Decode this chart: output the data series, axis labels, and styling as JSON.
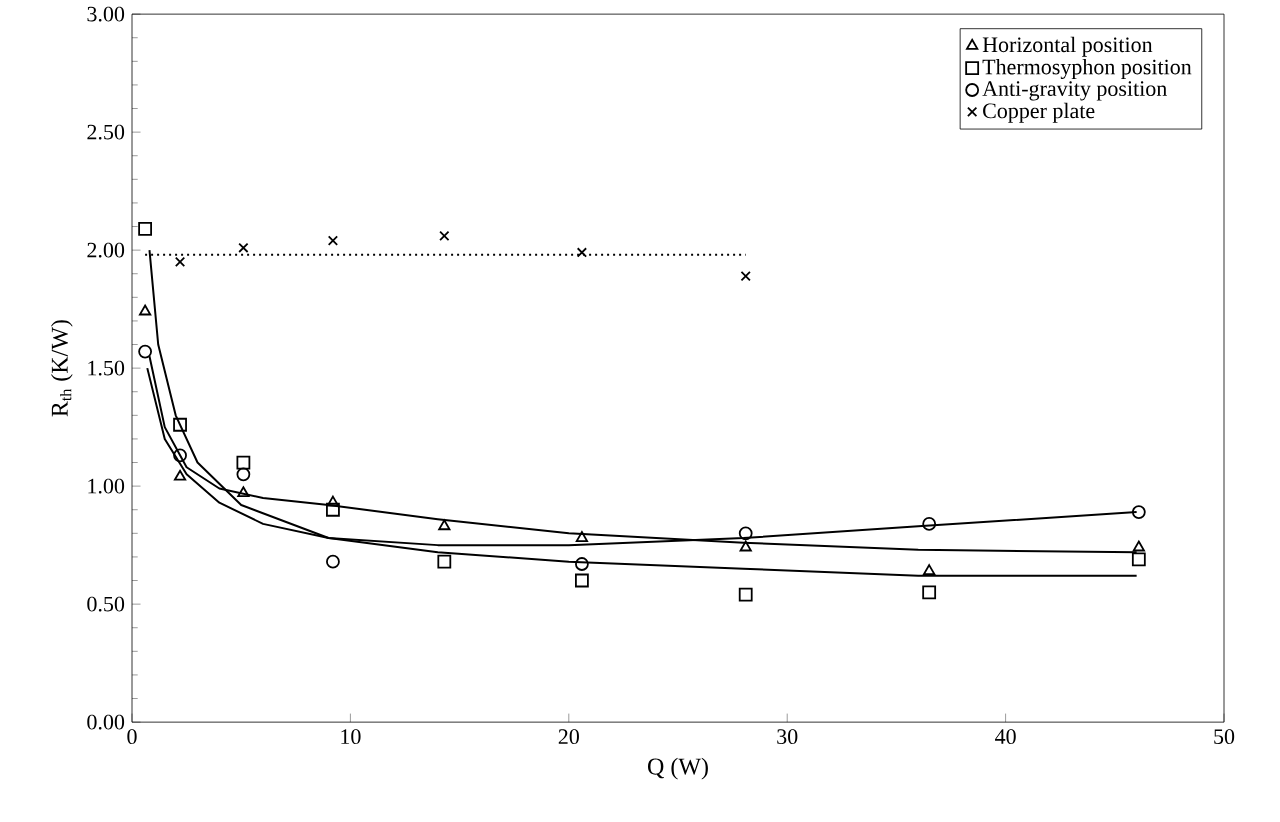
{
  "chart_data": {
    "type": "scatter",
    "xlabel": "Q (W)",
    "ylabel": "R$_{th}$ (K/W)",
    "xlim": [
      0,
      50
    ],
    "ylim": [
      0,
      3
    ],
    "xticks": [
      0,
      10,
      20,
      30,
      40,
      50
    ],
    "yticks": [
      {
        "value": 0,
        "label": "0.00"
      },
      {
        "value": 0.5,
        "label": "0.50"
      },
      {
        "value": 1,
        "label": "1.00"
      },
      {
        "value": 1.5,
        "label": "1.50"
      },
      {
        "value": 2,
        "label": "2.00"
      },
      {
        "value": 2.5,
        "label": "2.50"
      },
      {
        "value": 3,
        "label": "3.00"
      }
    ],
    "grid": false,
    "legend": "top right",
    "series": [
      {
        "name": "Horizontal position",
        "color": "#000000",
        "marker": "triangle",
        "x": [
          0.6,
          2.2,
          5.1,
          9.2,
          14.3,
          20.6,
          28.1,
          36.5,
          46.1
        ],
        "values": [
          1.74,
          1.04,
          0.97,
          0.93,
          0.83,
          0.78,
          0.74,
          0.64,
          0.74
        ]
      },
      {
        "name": "Thermosyphon position",
        "color": "#000000",
        "marker": "square",
        "x": [
          0.6,
          2.2,
          5.1,
          9.2,
          14.3,
          20.6,
          28.1,
          36.5,
          46.1
        ],
        "values": [
          2.09,
          1.26,
          1.1,
          0.9,
          0.68,
          0.6,
          0.54,
          0.55,
          0.69
        ]
      },
      {
        "name": "Anti-gravity position",
        "color": "#000000",
        "marker": "circle",
        "x": [
          0.6,
          2.2,
          5.1,
          9.2,
          20.6,
          28.1,
          36.5,
          46.1
        ],
        "values": [
          1.57,
          1.13,
          1.05,
          0.68,
          0.67,
          0.8,
          0.84,
          0.89
        ]
      },
      {
        "name": "Copper plate",
        "color": "#000000",
        "marker": "cross",
        "x": [
          2.2,
          5.1,
          9.2,
          14.3,
          20.6,
          28.1
        ],
        "values": [
          1.95,
          2.01,
          2.04,
          2.06,
          1.99,
          1.89
        ]
      },
      {
        "type": "line",
        "color": "#000000",
        "marker": "none",
        "line_style": "solid",
        "x": [
          0.8,
          1.5,
          2.5,
          4,
          6,
          9,
          14,
          20,
          28,
          36,
          46
        ],
        "values": [
          1.55,
          1.25,
          1.08,
          0.99,
          0.95,
          0.92,
          0.86,
          0.8,
          0.76,
          0.73,
          0.72
        ]
      },
      {
        "type": "line",
        "color": "#000000",
        "marker": "none",
        "line_style": "solid",
        "x": [
          0.8,
          1.2,
          2,
          3,
          5,
          9,
          14,
          20,
          28,
          36,
          46
        ],
        "values": [
          2.0,
          1.6,
          1.3,
          1.1,
          0.92,
          0.78,
          0.72,
          0.68,
          0.65,
          0.62,
          0.62
        ]
      },
      {
        "type": "line",
        "color": "#000000",
        "marker": "none",
        "line_style": "solid",
        "x": [
          0.7,
          1.5,
          2.5,
          4,
          6,
          9,
          14,
          20,
          28,
          36,
          46
        ],
        "values": [
          1.5,
          1.2,
          1.05,
          0.93,
          0.84,
          0.78,
          0.75,
          0.75,
          0.78,
          0.83,
          0.89
        ]
      },
      {
        "type": "line",
        "color": "#000000",
        "marker": "none",
        "line_style": "dotted",
        "x": [
          0.6,
          28.1
        ],
        "values": [
          1.98,
          1.98
        ]
      }
    ]
  }
}
